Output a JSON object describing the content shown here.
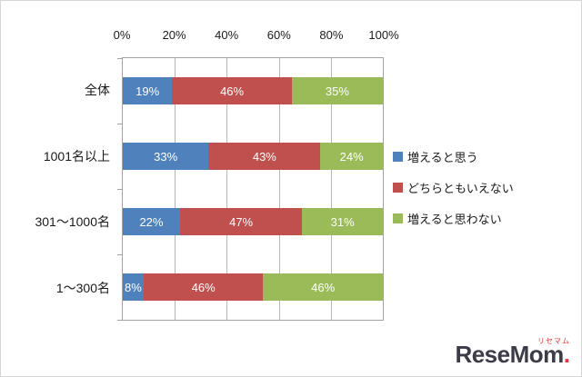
{
  "chart_data": {
    "type": "bar",
    "stacked": true,
    "orientation": "horizontal",
    "title": "",
    "categories": [
      "全体",
      "1001名以上",
      "301～1000名",
      "1～300名"
    ],
    "series": [
      {
        "name": "増えると思う",
        "color": "#4f81bd",
        "values": [
          19,
          33,
          22,
          8
        ]
      },
      {
        "name": "どちらともいえない",
        "color": "#c0504d",
        "values": [
          46,
          43,
          47,
          46
        ]
      },
      {
        "name": "増えると思わない",
        "color": "#9bbb59",
        "values": [
          35,
          24,
          31,
          46
        ]
      }
    ],
    "x_ticks": [
      "0%",
      "20%",
      "40%",
      "60%",
      "80%",
      "100%"
    ],
    "xlim": [
      0,
      100
    ],
    "grid": "vertical",
    "legend_position": "right",
    "data_label_format": "{value}%"
  },
  "watermark": {
    "text": "ReseMom",
    "dot": ".",
    "ruby": "リセマム"
  }
}
